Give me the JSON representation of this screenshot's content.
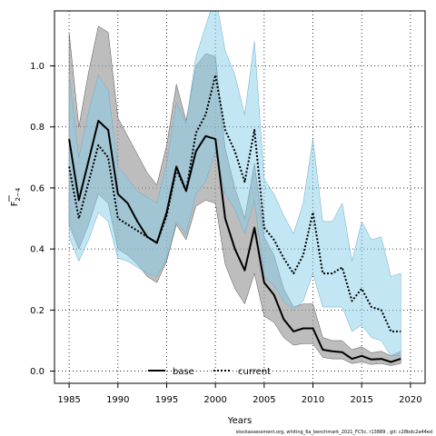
{
  "chart_data": {
    "type": "line",
    "xlabel": "Years",
    "ylabel": "F",
    "ylabel_subscript": "2−4",
    "xlim": [
      1983.5,
      2021.5
    ],
    "ylim": [
      -0.04,
      1.18
    ],
    "x_ticks": [
      1985,
      1990,
      1995,
      2000,
      2005,
      2010,
      2015,
      2020
    ],
    "y_ticks": [
      0.0,
      0.2,
      0.4,
      0.6,
      0.8,
      1.0
    ],
    "y_tick_labels": [
      "0.0",
      "0.2",
      "0.4",
      "0.6",
      "0.8",
      "1.0"
    ],
    "grid": true,
    "legend_position": "bottom",
    "x": [
      1985,
      1986,
      1987,
      1988,
      1989,
      1990,
      1991,
      1992,
      1993,
      1994,
      1995,
      1996,
      1997,
      1998,
      1999,
      2000,
      2001,
      2002,
      2003,
      2004,
      2005,
      2006,
      2007,
      2008,
      2009,
      2010,
      2011,
      2012,
      2013,
      2014,
      2015,
      2016,
      2017,
      2018,
      2019
    ],
    "series": [
      {
        "name": "base",
        "color": "#000000",
        "band_color": "#9a9a9a",
        "line_style": "solid",
        "values": [
          0.76,
          0.56,
          0.69,
          0.82,
          0.79,
          0.58,
          0.55,
          0.49,
          0.44,
          0.42,
          0.52,
          0.67,
          0.59,
          0.72,
          0.77,
          0.76,
          0.5,
          0.4,
          0.33,
          0.47,
          0.29,
          0.25,
          0.17,
          0.13,
          0.14,
          0.14,
          0.07,
          0.065,
          0.062,
          0.04,
          0.05,
          0.038,
          0.04,
          0.03,
          0.04
        ],
        "lower": [
          0.48,
          0.4,
          0.48,
          0.58,
          0.55,
          0.4,
          0.38,
          0.35,
          0.31,
          0.29,
          0.36,
          0.48,
          0.43,
          0.54,
          0.56,
          0.55,
          0.35,
          0.27,
          0.22,
          0.32,
          0.18,
          0.16,
          0.11,
          0.085,
          0.09,
          0.09,
          0.045,
          0.04,
          0.04,
          0.025,
          0.03,
          0.022,
          0.025,
          0.018,
          0.025
        ],
        "upper": [
          1.11,
          0.8,
          0.98,
          1.13,
          1.11,
          0.83,
          0.77,
          0.71,
          0.65,
          0.61,
          0.74,
          0.94,
          0.82,
          1.0,
          1.04,
          1.03,
          0.73,
          0.6,
          0.5,
          0.68,
          0.44,
          0.38,
          0.27,
          0.21,
          0.22,
          0.22,
          0.11,
          0.1,
          0.1,
          0.07,
          0.08,
          0.06,
          0.065,
          0.05,
          0.065
        ]
      },
      {
        "name": "current",
        "color": "#000000",
        "band_color": "#87ceeb",
        "line_style": "dotted",
        "values": [
          0.67,
          0.5,
          0.62,
          0.74,
          0.7,
          0.5,
          0.48,
          0.46,
          0.44,
          0.42,
          0.51,
          0.66,
          0.59,
          0.78,
          0.84,
          0.97,
          0.79,
          0.72,
          0.62,
          0.79,
          0.47,
          0.43,
          0.37,
          0.32,
          0.38,
          0.52,
          0.32,
          0.32,
          0.34,
          0.23,
          0.27,
          0.21,
          0.2,
          0.13,
          0.13
        ],
        "lower": [
          0.44,
          0.36,
          0.43,
          0.52,
          0.49,
          0.37,
          0.36,
          0.34,
          0.32,
          0.31,
          0.37,
          0.49,
          0.45,
          0.58,
          0.62,
          0.72,
          0.58,
          0.53,
          0.45,
          0.56,
          0.31,
          0.28,
          0.23,
          0.2,
          0.23,
          0.32,
          0.21,
          0.21,
          0.21,
          0.13,
          0.15,
          0.11,
          0.1,
          0.05,
          0.05
        ],
        "upper": [
          0.97,
          0.7,
          0.85,
          0.97,
          0.92,
          0.67,
          0.63,
          0.59,
          0.57,
          0.55,
          0.68,
          0.88,
          0.81,
          1.03,
          1.13,
          1.23,
          1.05,
          0.97,
          0.84,
          1.08,
          0.63,
          0.58,
          0.51,
          0.45,
          0.55,
          0.76,
          0.49,
          0.49,
          0.55,
          0.36,
          0.49,
          0.43,
          0.44,
          0.31,
          0.32
        ]
      }
    ]
  },
  "footer": "stockassessment.org, whiting_6a_benchmark_2021_FC5c, r13889 , git: c28bdc2a44ed"
}
